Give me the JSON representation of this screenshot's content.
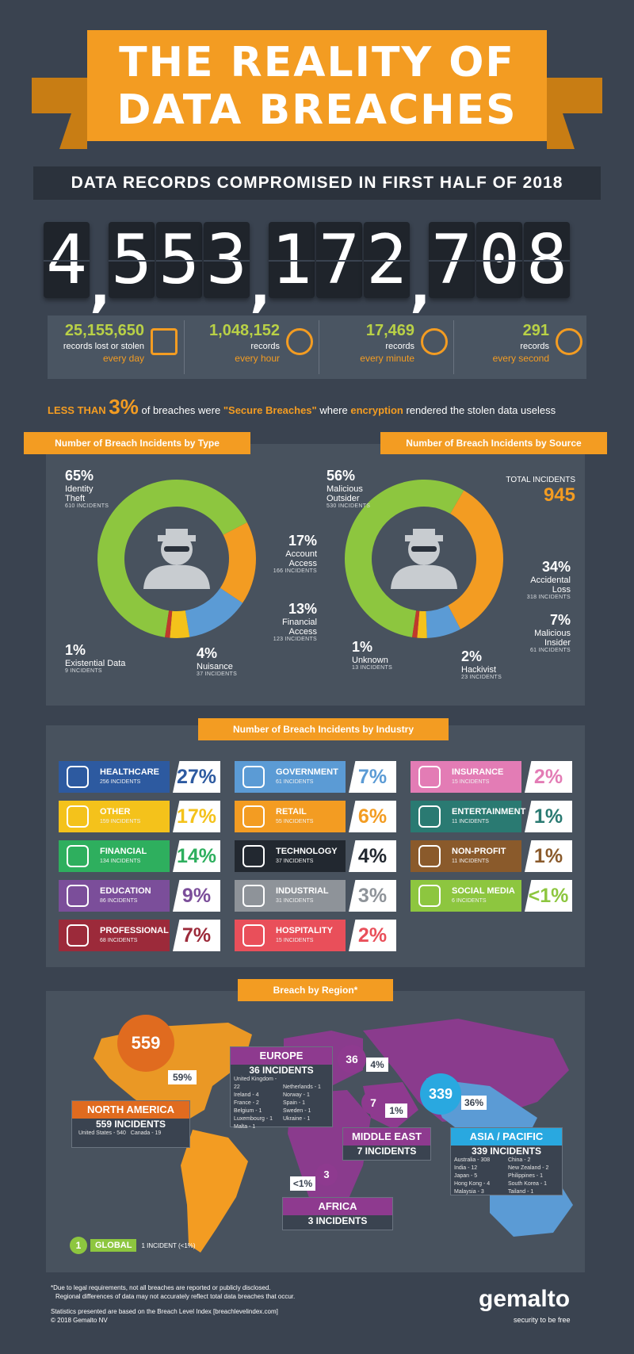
{
  "title": {
    "line1": "THE REALITY OF",
    "line2": "DATA BREACHES"
  },
  "subtitle": "DATA RECORDS COMPROMISED IN FIRST HALF OF 2018",
  "total_records": {
    "digits": [
      "4",
      "5",
      "5",
      "3",
      "1",
      "7",
      "2",
      "7",
      "0",
      "8"
    ]
  },
  "rates": [
    {
      "number": "25,155,650",
      "line1": "records lost or stolen",
      "line2": "every day",
      "icon": "calendar-icon"
    },
    {
      "number": "1,048,152",
      "line1": "records",
      "line2": "every hour",
      "icon": "clock-icon"
    },
    {
      "number": "17,469",
      "line1": "records",
      "line2": "every minute",
      "icon": "watch-icon"
    },
    {
      "number": "291",
      "line1": "records",
      "line2": "every second",
      "icon": "stopwatch-icon"
    }
  ],
  "secure": {
    "lead": "LESS THAN",
    "pct": "3%",
    "mid": "of breaches were",
    "quote": "\"Secure Breaches\"",
    "where": "where",
    "enc": "encryption",
    "tail": "rendered the stolen data useless"
  },
  "colors": {
    "orange": "#f39c22",
    "green": "#8dc63f",
    "blue": "#5b9bd5",
    "yellow": "#f4c21b",
    "red": "#c0392b",
    "bg": "#3a4350",
    "panel": "#48525e"
  },
  "chart_data": [
    {
      "type": "pie",
      "title": "Number of Breach Incidents by Type",
      "categories": [
        "Identity Theft",
        "Account Access",
        "Financial Access",
        "Nuisance",
        "Existential Data"
      ],
      "values": [
        65,
        17,
        13,
        4,
        1
      ],
      "incidents": [
        610,
        166,
        123,
        37,
        9
      ],
      "colors": [
        "#8dc63f",
        "#f39c22",
        "#5b9bd5",
        "#f4c21b",
        "#c0392b"
      ]
    },
    {
      "type": "pie",
      "title": "Number of Breach Incidents by Source",
      "categories": [
        "Malicious Outsider",
        "Accidental Loss",
        "Malicious Insider",
        "Hackivist",
        "Unknown"
      ],
      "values": [
        56,
        34,
        7,
        2,
        1
      ],
      "incidents": [
        530,
        318,
        61,
        23,
        13
      ],
      "colors": [
        "#8dc63f",
        "#f39c22",
        "#5b9bd5",
        "#f4c21b",
        "#c0392b"
      ]
    },
    {
      "type": "bar",
      "title": "Number of Breach Incidents by Industry",
      "categories": [
        "HEALTHCARE",
        "OTHER",
        "FINANCIAL",
        "EDUCATION",
        "PROFESSIONAL",
        "GOVERNMENT",
        "RETAIL",
        "TECHNOLOGY",
        "INDUSTRIAL",
        "HOSPITALITY",
        "INSURANCE",
        "ENTERTAINMENT",
        "NON-PROFIT",
        "SOCIAL MEDIA"
      ],
      "values": [
        27,
        17,
        14,
        9,
        7,
        7,
        6,
        4,
        3,
        2,
        2,
        1,
        1,
        0.5
      ],
      "incidents": [
        256,
        159,
        134,
        86,
        68,
        61,
        55,
        37,
        31,
        15,
        15,
        11,
        11,
        6
      ]
    }
  ],
  "type_chart": {
    "title": "Number of Breach Incidents by Type",
    "labels": [
      {
        "pct": "65%",
        "name1": "Identity",
        "name2": "Theft",
        "inc": "610 INCIDENTS"
      },
      {
        "pct": "17%",
        "name1": "Account",
        "name2": "Access",
        "inc": "166 INCIDENTS"
      },
      {
        "pct": "13%",
        "name1": "Financial",
        "name2": "Access",
        "inc": "123 INCIDENTS"
      },
      {
        "pct": "4%",
        "name1": "Nuisance",
        "name2": "",
        "inc": "37 INCIDENTS"
      },
      {
        "pct": "1%",
        "name1": "Existential Data",
        "name2": "",
        "inc": "9 INCIDENTS"
      }
    ]
  },
  "source_chart": {
    "title": "Number of Breach Incidents by Source",
    "total_label": "TOTAL INCIDENTS",
    "total_value": "945",
    "labels": [
      {
        "pct": "56%",
        "name1": "Malicious",
        "name2": "Outsider",
        "inc": "530 INCIDENTS"
      },
      {
        "pct": "34%",
        "name1": "Accidental",
        "name2": "Loss",
        "inc": "318 INCIDENTS"
      },
      {
        "pct": "7%",
        "name1": "Malicious",
        "name2": "Insider",
        "inc": "61 INCIDENTS"
      },
      {
        "pct": "2%",
        "name1": "Hackivist",
        "name2": "",
        "inc": "23 INCIDENTS"
      },
      {
        "pct": "1%",
        "name1": "Unknown",
        "name2": "",
        "inc": "13 INCIDENTS"
      }
    ]
  },
  "industry": {
    "title": "Number of Breach Incidents by Industry",
    "items": [
      {
        "name": "HEALTHCARE",
        "inc": "256 INCIDENTS",
        "pct": "27%",
        "color": "#2d5aa0",
        "pctcolor": "#2d5aa0",
        "icon": "heart-icon"
      },
      {
        "name": "OTHER",
        "inc": "159 INCIDENTS",
        "pct": "17%",
        "color": "#f4c21b",
        "pctcolor": "#f4c21b",
        "icon": "lock-icon"
      },
      {
        "name": "FINANCIAL",
        "inc": "134 INCIDENTS",
        "pct": "14%",
        "color": "#2eaf5e",
        "pctcolor": "#2eaf5e",
        "icon": "bank-icon"
      },
      {
        "name": "EDUCATION",
        "inc": "86 INCIDENTS",
        "pct": "9%",
        "color": "#7b4e9a",
        "pctcolor": "#7b4e9a",
        "icon": "graduation-cap-icon"
      },
      {
        "name": "PROFESSIONAL",
        "inc": "68 INCIDENTS",
        "pct": "7%",
        "color": "#9c2a3a",
        "pctcolor": "#9c2a3a",
        "icon": "briefcase-icon"
      },
      {
        "name": "GOVERNMENT",
        "inc": "61 INCIDENTS",
        "pct": "7%",
        "color": "#5b9bd5",
        "pctcolor": "#5b9bd5",
        "icon": "flag-icon"
      },
      {
        "name": "RETAIL",
        "inc": "55 INCIDENTS",
        "pct": "6%",
        "color": "#f39c22",
        "pctcolor": "#f39c22",
        "icon": "cart-icon"
      },
      {
        "name": "TECHNOLOGY",
        "inc": "37 INCIDENTS",
        "pct": "4%",
        "color": "#222830",
        "pctcolor": "#222830",
        "icon": "laptop-icon"
      },
      {
        "name": "INDUSTRIAL",
        "inc": "31 INCIDENTS",
        "pct": "3%",
        "color": "#8e9399",
        "pctcolor": "#8e9399",
        "icon": "gear-icon"
      },
      {
        "name": "HOSPITALITY",
        "inc": "15 INCIDENTS",
        "pct": "2%",
        "color": "#e94f5a",
        "pctcolor": "#e94f5a",
        "icon": "bell-icon"
      },
      {
        "name": "INSURANCE",
        "inc": "15 INCIDENTS",
        "pct": "2%",
        "color": "#e37cb5",
        "pctcolor": "#e37cb5",
        "icon": "umbrella-icon"
      },
      {
        "name": "ENTERTAINMENT",
        "inc": "11 INCIDENTS",
        "pct": "1%",
        "color": "#2a7a72",
        "pctcolor": "#2a7a72",
        "icon": "mask-icon"
      },
      {
        "name": "NON-PROFIT",
        "inc": "11 INCIDENTS",
        "pct": "1%",
        "color": "#8a5a2b",
        "pctcolor": "#8a5a2b",
        "icon": "handshake-icon"
      },
      {
        "name": "SOCIAL MEDIA",
        "inc": "6 INCIDENTS",
        "pct": "<1%",
        "color": "#8dc63f",
        "pctcolor": "#8dc63f",
        "icon": "share-icon"
      }
    ]
  },
  "region": {
    "title": "Breach by Region*",
    "na": {
      "bubble": "559",
      "pct": "59%",
      "name": "NORTH AMERICA",
      "inc": "559 INCIDENTS",
      "d1": "United States - 540",
      "d2": "Canada - 19"
    },
    "eu": {
      "bubble": "36",
      "pct": "4%",
      "name": "EUROPE",
      "inc": "36 INCIDENTS",
      "left": [
        "United Kingdom - 22",
        "Ireland - 4",
        "France - 2",
        "Belgium - 1",
        "Luxembourg - 1",
        "Malta - 1"
      ],
      "right": [
        "",
        "Netherlands - 1",
        "Norway - 1",
        "Spain - 1",
        "Sweden - 1",
        "Ukraine - 1"
      ]
    },
    "me": {
      "bubble": "7",
      "pct": "1%",
      "name": "MIDDLE EAST",
      "inc": "7 INCIDENTS"
    },
    "ap": {
      "bubble": "339",
      "pct": "36%",
      "name": "ASIA / PACIFIC",
      "inc": "339 INCIDENTS",
      "left": [
        "Australia - 308",
        "India - 12",
        "Japan - 5",
        "Hong Kong - 4",
        "Malaysia - 3"
      ],
      "right": [
        "China - 2",
        "New Zealand - 2",
        "Philippines - 1",
        "South Korea - 1",
        "Tailand - 1"
      ]
    },
    "af": {
      "bubble": "3",
      "pct": "<1%",
      "name": "AFRICA",
      "inc": "3 INCIDENTS"
    },
    "global": {
      "num": "1",
      "label": "GLOBAL",
      "inc": "1 INCIDENT (<1%)"
    }
  },
  "footer": {
    "note1": "*Due to legal requirements, not all breaches are reported or publicly disclosed.",
    "note2": "Regional differences of data may not accurately reflect total data breaches that occur.",
    "note3": "Statistics presented are based on the Breach Level Index [breachlevelindex.com]",
    "note4": "© 2018 Gemalto NV",
    "brand": "gemalto",
    "tagline": "security to be free"
  }
}
